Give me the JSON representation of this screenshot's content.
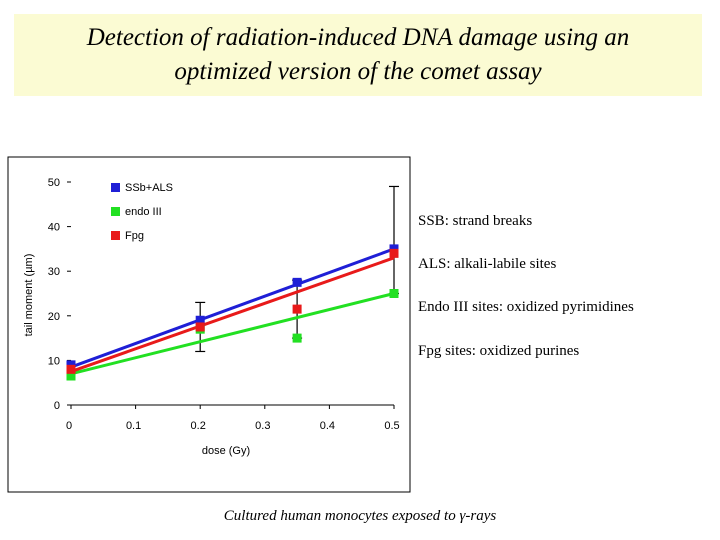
{
  "title": {
    "line1": "Detection of radiation-induced DNA damage using an",
    "line2": "optimized version of the comet assay"
  },
  "annotations": [
    "SSB: strand breaks",
    "ALS: alkali-labile sites",
    "Endo III sites: oxidized pyrimidines",
    "Fpg sites: oxidized purines"
  ],
  "caption_prefix": "Cultured human monocytes exposed to ",
  "caption_gamma": "γ",
  "caption_suffix": "-rays",
  "chart_data": {
    "type": "scatter",
    "title": "",
    "xlabel": "dose (Gy)",
    "ylabel": "tail moment (µm)",
    "xlim": [
      0,
      0.5
    ],
    "ylim": [
      0,
      50
    ],
    "x_ticks": [
      "0",
      "0.1",
      "0.2",
      "0.3",
      "0.4",
      "0.5"
    ],
    "y_ticks": [
      "0",
      "10",
      "20",
      "30",
      "40",
      "50"
    ],
    "grid": false,
    "legend_position": "top-left",
    "series": [
      {
        "name": "SSb+ALS",
        "color": "#1f1fd6",
        "points": [
          [
            0,
            9
          ],
          [
            0.2,
            19
          ],
          [
            0.35,
            27.5
          ],
          [
            0.5,
            35
          ]
        ],
        "fit": [
          [
            0,
            8.5
          ],
          [
            0.5,
            35
          ]
        ]
      },
      {
        "name": "endo III",
        "color": "#22e022",
        "points": [
          [
            0,
            6.5
          ],
          [
            0.2,
            17
          ],
          [
            0.35,
            15
          ],
          [
            0.5,
            25
          ]
        ],
        "fit": [
          [
            0,
            7
          ],
          [
            0.5,
            25
          ]
        ]
      },
      {
        "name": "Fpg",
        "color": "#e81a1a",
        "points": [
          [
            0,
            8
          ],
          [
            0.2,
            17.5
          ],
          [
            0.35,
            21.5
          ],
          [
            0.5,
            34
          ]
        ],
        "fit": [
          [
            0,
            7.5
          ],
          [
            0.5,
            33
          ]
        ]
      }
    ],
    "error_bars": [
      {
        "x": 0.2,
        "low": 12,
        "high": 23
      },
      {
        "x": 0.35,
        "low": 15,
        "high": 28
      },
      {
        "x": 0.5,
        "low": 25,
        "high": 49
      }
    ]
  }
}
